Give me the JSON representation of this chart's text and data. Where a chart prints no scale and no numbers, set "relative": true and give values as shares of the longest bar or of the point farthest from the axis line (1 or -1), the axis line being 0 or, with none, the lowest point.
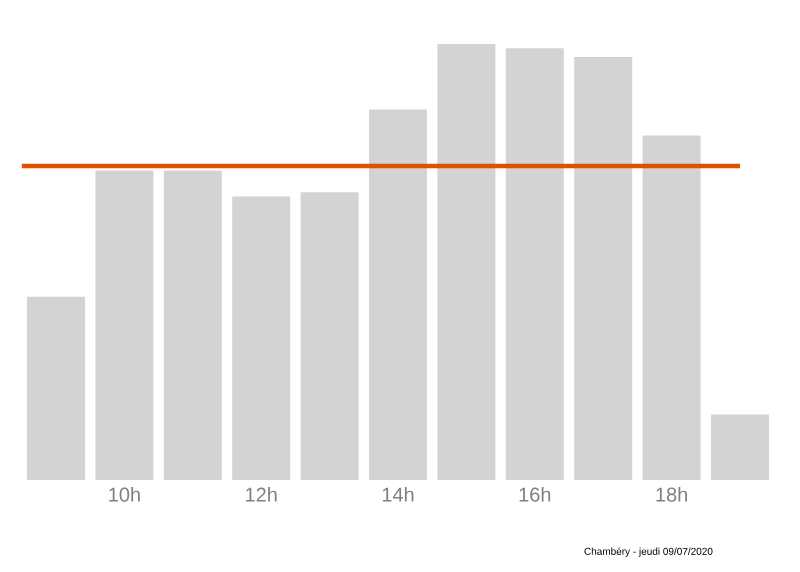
{
  "chart_data": {
    "type": "bar",
    "relative": true,
    "categories": [
      null,
      "10h",
      null,
      "12h",
      null,
      "14h",
      null,
      "16h",
      null,
      "18h",
      null
    ],
    "values": [
      0.42,
      0.71,
      0.71,
      0.65,
      0.66,
      0.85,
      1,
      0.99,
      0.97,
      0.79,
      0.15
    ],
    "color": "#d3d3d3",
    "ref_lines": [
      {
        "axis": "y",
        "value": 0.72,
        "color": "#e05000"
      }
    ],
    "annotations": [
      "Chambéry - jeudi 09/07/2020"
    ]
  }
}
